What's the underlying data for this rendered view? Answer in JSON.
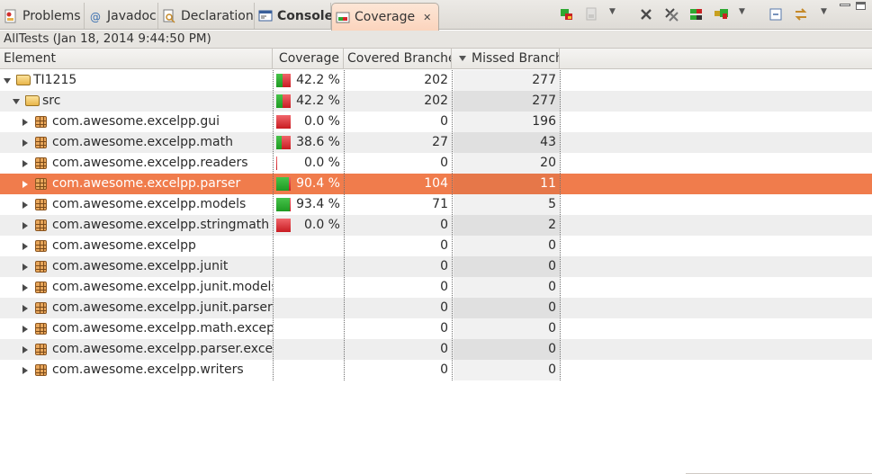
{
  "tabs": [
    {
      "label": "Problems",
      "icon": "problems-icon",
      "active": false
    },
    {
      "label": "Javadoc",
      "icon": "javadoc-at-icon",
      "active": false
    },
    {
      "label": "Declaration",
      "icon": "declaration-icon",
      "active": false
    },
    {
      "label": "Console",
      "icon": "console-icon",
      "active": false
    },
    {
      "label": "Coverage",
      "icon": "coverage-icon",
      "active": true,
      "close": "✕"
    }
  ],
  "toolbar": {
    "icons": [
      "relaunch-coverage-icon",
      "dump-execution-data-icon",
      "remove-session-icon",
      "remove-all-sessions-icon",
      "merge-sessions-icon",
      "select-session-icon",
      "collapse-all-icon",
      "link-with-selection-icon",
      "view-menu-icon"
    ]
  },
  "session": {
    "description": "AllTests (Jan 18, 2014 9:44:50 PM)"
  },
  "columns": {
    "element": "Element",
    "coverage": "Coverage",
    "covered": "Covered Branche",
    "missed": "Missed Branch"
  },
  "colors": {
    "accent_selection": "#f07c4c",
    "covered": "#2ea832",
    "missed": "#d8262c",
    "active_tab": "#fbd4bd"
  },
  "rows": [
    {
      "name": "TI1215",
      "level": 0,
      "kind": "project",
      "expanded": true,
      "coverage": "42.2 %",
      "cov": 0.422,
      "covered": "202",
      "missed": "277"
    },
    {
      "name": "src",
      "level": 1,
      "kind": "source-folder",
      "expanded": true,
      "coverage": "42.2 %",
      "cov": 0.422,
      "covered": "202",
      "missed": "277"
    },
    {
      "name": "com.awesome.excelpp.gui",
      "level": 2,
      "kind": "package",
      "coverage": "0.0 %",
      "cov": 0.0,
      "covered": "0",
      "missed": "196"
    },
    {
      "name": "com.awesome.excelpp.math",
      "level": 2,
      "kind": "package",
      "coverage": "38.6 %",
      "cov": 0.386,
      "covered": "27",
      "missed": "43"
    },
    {
      "name": "com.awesome.excelpp.readers",
      "level": 2,
      "kind": "package",
      "coverage": "0.0 %",
      "cov": 0.0,
      "covered": "0",
      "missed": "20"
    },
    {
      "name": "com.awesome.excelpp.parser",
      "level": 2,
      "kind": "package",
      "coverage": "90.4 %",
      "cov": 0.904,
      "covered": "104",
      "missed": "11",
      "selected": true
    },
    {
      "name": "com.awesome.excelpp.models",
      "level": 2,
      "kind": "package",
      "coverage": "93.4 %",
      "cov": 0.934,
      "covered": "71",
      "missed": "5"
    },
    {
      "name": "com.awesome.excelpp.stringmath",
      "level": 2,
      "kind": "package",
      "coverage": "0.0 %",
      "cov": 0.0,
      "covered": "0",
      "missed": "2"
    },
    {
      "name": "com.awesome.excelpp",
      "level": 2,
      "kind": "package",
      "coverage": "",
      "cov": null,
      "covered": "0",
      "missed": "0"
    },
    {
      "name": "com.awesome.excelpp.junit",
      "level": 2,
      "kind": "package",
      "coverage": "",
      "cov": null,
      "covered": "0",
      "missed": "0"
    },
    {
      "name": "com.awesome.excelpp.junit.models",
      "level": 2,
      "kind": "package",
      "coverage": "",
      "cov": null,
      "covered": "0",
      "missed": "0"
    },
    {
      "name": "com.awesome.excelpp.junit.parser",
      "level": 2,
      "kind": "package",
      "coverage": "",
      "cov": null,
      "covered": "0",
      "missed": "0"
    },
    {
      "name": "com.awesome.excelpp.math.excepti",
      "level": 2,
      "kind": "package",
      "coverage": "",
      "cov": null,
      "covered": "0",
      "missed": "0"
    },
    {
      "name": "com.awesome.excelpp.parser.excep",
      "level": 2,
      "kind": "package",
      "coverage": "",
      "cov": null,
      "covered": "0",
      "missed": "0"
    },
    {
      "name": "com.awesome.excelpp.writers",
      "level": 2,
      "kind": "package",
      "coverage": "",
      "cov": null,
      "covered": "0",
      "missed": "0"
    }
  ]
}
